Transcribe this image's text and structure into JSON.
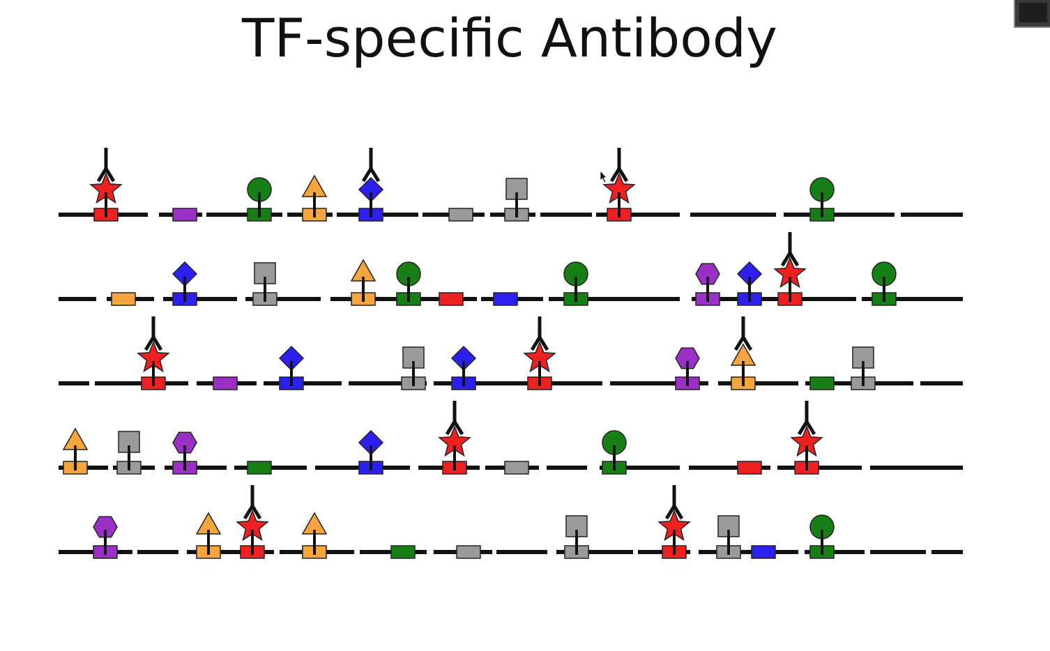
{
  "slide": {
    "title": "TF-specific Antibody"
  },
  "colors": {
    "dna": "#111111",
    "antibody": "#111111",
    "red": "#ee2020",
    "purple": "#9a30c6",
    "green": "#168016",
    "orange": "#f5a53c",
    "blue": "#2b20f0",
    "gray": "#9a9a9a",
    "outline": "#222222"
  },
  "diagram": {
    "rows": [
      {
        "gaps": [
          212,
          228,
          290,
          296,
          405,
          412,
          477,
          483,
          600,
          606,
          695,
          703,
          768,
          775,
          849,
          855,
          975,
          990,
          1113,
          1124,
          1283,
          1292
        ],
        "elements": [
          {
            "pos": 152,
            "color": "red",
            "factor": "star",
            "antibody": true
          },
          {
            "pos": 265,
            "color": "purple",
            "factor": null,
            "antibody": false
          },
          {
            "pos": 372,
            "color": "green",
            "factor": "circle",
            "antibody": false
          },
          {
            "pos": 451,
            "color": "orange",
            "factor": "triangle",
            "antibody": false
          },
          {
            "pos": 532,
            "color": "blue",
            "factor": "diamond",
            "antibody": true
          },
          {
            "pos": 661,
            "color": "gray",
            "factor": null,
            "antibody": false
          },
          {
            "pos": 741,
            "color": "gray",
            "factor": "square",
            "antibody": false
          },
          {
            "pos": 888,
            "color": "red",
            "factor": "star",
            "antibody": true
          },
          {
            "pos": 1179,
            "color": "green",
            "factor": "circle",
            "antibody": false
          }
        ]
      },
      {
        "gaps": [
          138,
          153,
          221,
          234,
          340,
          352,
          460,
          474,
          684,
          690,
          779,
          787,
          975,
          992,
          1228,
          1236
        ],
        "elements": [
          {
            "pos": 177,
            "color": "orange",
            "factor": null,
            "antibody": false
          },
          {
            "pos": 265,
            "color": "blue",
            "factor": "diamond",
            "antibody": false
          },
          {
            "pos": 380,
            "color": "gray",
            "factor": "square",
            "antibody": false
          },
          {
            "pos": 521,
            "color": "orange",
            "factor": "triangle",
            "antibody": false
          },
          {
            "pos": 586,
            "color": "green",
            "factor": "circle",
            "antibody": false
          },
          {
            "pos": 647,
            "color": "red",
            "factor": null,
            "antibody": false
          },
          {
            "pos": 725,
            "color": "blue",
            "factor": null,
            "antibody": false
          },
          {
            "pos": 826,
            "color": "green",
            "factor": "circle",
            "antibody": false
          },
          {
            "pos": 1015,
            "color": "purple",
            "factor": "hexagon",
            "antibody": false
          },
          {
            "pos": 1075,
            "color": "blue",
            "factor": "diamond",
            "antibody": false
          },
          {
            "pos": 1133,
            "color": "red",
            "factor": "star",
            "antibody": true
          },
          {
            "pos": 1268,
            "color": "green",
            "factor": "circle",
            "antibody": false
          }
        ]
      },
      {
        "gaps": [
          128,
          136,
          270,
          282,
          368,
          378,
          490,
          500,
          612,
          622,
          864,
          875,
          1016,
          1030,
          1145,
          1155,
          1310,
          1320
        ],
        "elements": [
          {
            "pos": 220,
            "color": "red",
            "factor": "star",
            "antibody": true
          },
          {
            "pos": 323,
            "color": "purple",
            "factor": null,
            "antibody": false
          },
          {
            "pos": 418,
            "color": "blue",
            "factor": "diamond",
            "antibody": false
          },
          {
            "pos": 593,
            "color": "gray",
            "factor": "square",
            "antibody": false
          },
          {
            "pos": 665,
            "color": "blue",
            "factor": "diamond",
            "antibody": false
          },
          {
            "pos": 774,
            "color": "red",
            "factor": "star",
            "antibody": true
          },
          {
            "pos": 986,
            "color": "purple",
            "factor": "hexagon",
            "antibody": false
          },
          {
            "pos": 1066,
            "color": "orange",
            "factor": "triangle",
            "antibody": true
          },
          {
            "pos": 1179,
            "color": "green",
            "factor": null,
            "antibody": false
          },
          {
            "pos": 1238,
            "color": "gray",
            "factor": "square",
            "antibody": false
          }
        ]
      },
      {
        "gaps": [
          155,
          162,
          222,
          236,
          325,
          336,
          440,
          452,
          588,
          600,
          688,
          696,
          773,
          784,
          842,
          860,
          975,
          988,
          1105,
          1115,
          1236,
          1248
        ],
        "elements": [
          {
            "pos": 108,
            "color": "orange",
            "factor": "triangle",
            "antibody": false
          },
          {
            "pos": 185,
            "color": "gray",
            "factor": "square",
            "antibody": false
          },
          {
            "pos": 265,
            "color": "purple",
            "factor": "hexagon",
            "antibody": false
          },
          {
            "pos": 372,
            "color": "green",
            "factor": null,
            "antibody": false
          },
          {
            "pos": 532,
            "color": "blue",
            "factor": "diamond",
            "antibody": false
          },
          {
            "pos": 652,
            "color": "red",
            "factor": "star",
            "antibody": true
          },
          {
            "pos": 741,
            "color": "gray",
            "factor": null,
            "antibody": false
          },
          {
            "pos": 881,
            "color": "green",
            "factor": "circle",
            "antibody": false
          },
          {
            "pos": 1075,
            "color": "red",
            "factor": null,
            "antibody": false
          },
          {
            "pos": 1157,
            "color": "red",
            "factor": "star",
            "antibody": true
          }
        ]
      },
      {
        "gaps": [
          190,
          197,
          256,
          268,
          393,
          401,
          508,
          516,
          612,
          622,
          706,
          712,
          785,
          798,
          908,
          915,
          990,
          1002,
          1145,
          1154,
          1240,
          1248,
          1328,
          1336
        ],
        "elements": [
          {
            "pos": 151,
            "color": "purple",
            "factor": "hexagon",
            "antibody": false
          },
          {
            "pos": 299,
            "color": "orange",
            "factor": "triangle",
            "antibody": false
          },
          {
            "pos": 362,
            "color": "red",
            "factor": "star",
            "antibody": true
          },
          {
            "pos": 451,
            "color": "orange",
            "factor": "triangle",
            "antibody": false
          },
          {
            "pos": 578,
            "color": "green",
            "factor": null,
            "antibody": false
          },
          {
            "pos": 672,
            "color": "gray",
            "factor": null,
            "antibody": false
          },
          {
            "pos": 827,
            "color": "gray",
            "factor": "square",
            "antibody": false
          },
          {
            "pos": 967,
            "color": "red",
            "factor": "star",
            "antibody": true
          },
          {
            "pos": 1045,
            "color": "gray",
            "factor": "square",
            "antibody": false
          },
          {
            "pos": 1095,
            "color": "blue",
            "factor": null,
            "antibody": false
          },
          {
            "pos": 1179,
            "color": "green",
            "factor": "circle",
            "antibody": false
          }
        ]
      }
    ]
  }
}
